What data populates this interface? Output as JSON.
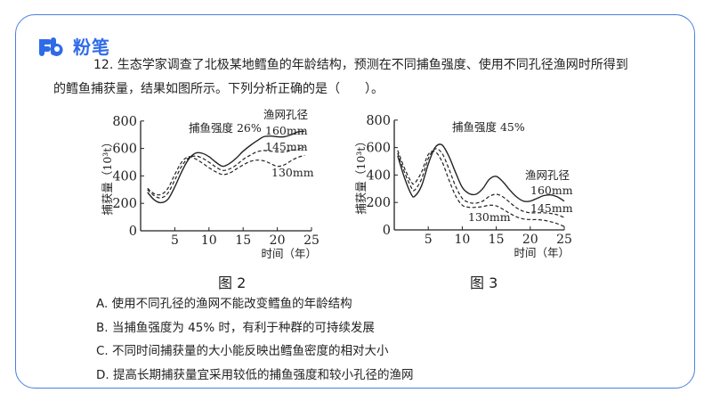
{
  "brand": {
    "name": "粉笔",
    "color": "#2f6be8"
  },
  "frame": {
    "border_color": "#4a7fe0"
  },
  "question": {
    "line1": "12. 生态学家调查了北极某地鳕鱼的年龄结构，预测在不同捕鱼强度、使用不同孔径渔网时所得到",
    "line2": "的鳕鱼捕获量，结果如图所示。下列分析正确的是（　　）。"
  },
  "figures": [
    {
      "caption": "图 2"
    },
    {
      "caption": "图 3"
    }
  ],
  "options": [
    {
      "label": "A. 使用不同孔径的渔网不能改变鳕鱼的年龄结构"
    },
    {
      "label": "B. 当捕鱼强度为 45% 时，有利于种群的可持续发展"
    },
    {
      "label": "C. 不同时间捕获量的大小能反映出鳕鱼密度的相对大小"
    },
    {
      "label": "D. 提高长期捕获量宜采用较低的捕鱼强度和较小孔径的渔网"
    }
  ],
  "chart_data": [
    {
      "type": "line",
      "title": "图 2",
      "annotation": "捕鱼强度 26%",
      "legend_title": "渔网孔径",
      "xlabel": "时间（年）",
      "ylabel": "捕获量（10³t）",
      "xticks": [
        5,
        10,
        15,
        20,
        25
      ],
      "yticks": [
        0,
        200,
        400,
        600,
        800
      ],
      "xlim": [
        0,
        25
      ],
      "ylim": [
        0,
        800
      ],
      "grid": false,
      "x": [
        1,
        2,
        3,
        4,
        5,
        6,
        7,
        8,
        9,
        10,
        11,
        12,
        13,
        14,
        15,
        16,
        17,
        18,
        19,
        20,
        21,
        22,
        23,
        24
      ],
      "series": [
        {
          "name": "160mm",
          "style": "solid",
          "values": [
            280,
            225,
            205,
            230,
            320,
            430,
            520,
            565,
            565,
            540,
            500,
            470,
            490,
            530,
            580,
            620,
            655,
            685,
            690,
            685,
            685,
            700,
            720,
            725
          ]
        },
        {
          "name": "145mm",
          "style": "dashed",
          "values": [
            300,
            255,
            240,
            275,
            370,
            470,
            530,
            545,
            530,
            500,
            465,
            440,
            450,
            480,
            520,
            550,
            575,
            585,
            580,
            575,
            575,
            585,
            595,
            610
          ]
        },
        {
          "name": "130mm",
          "style": "dashed",
          "values": [
            310,
            270,
            265,
            310,
            410,
            500,
            540,
            525,
            495,
            460,
            430,
            410,
            420,
            450,
            480,
            505,
            515,
            510,
            490,
            470,
            480,
            510,
            535,
            550
          ]
        }
      ]
    },
    {
      "type": "line",
      "title": "图 3",
      "annotation": "捕鱼强度 45%",
      "legend_title": "渔网孔径",
      "xlabel": "时间（年）",
      "ylabel": "捕获量（10³t）",
      "xticks": [
        5,
        10,
        15,
        20,
        25
      ],
      "yticks": [
        0,
        200,
        400,
        600,
        800
      ],
      "xlim": [
        0,
        25
      ],
      "ylim": [
        0,
        800
      ],
      "grid": false,
      "x": [
        0.5,
        1.5,
        2.5,
        3,
        4,
        5,
        6,
        7,
        8,
        9,
        10,
        11,
        12,
        13,
        14,
        15,
        16,
        17,
        18,
        19,
        20,
        21,
        22,
        23,
        24,
        25
      ],
      "series": [
        {
          "name": "160mm",
          "style": "solid",
          "values": [
            540,
            380,
            260,
            245,
            320,
            480,
            600,
            620,
            540,
            420,
            310,
            265,
            260,
            300,
            370,
            390,
            350,
            290,
            240,
            210,
            210,
            230,
            250,
            255,
            240,
            210
          ]
        },
        {
          "name": "145mm",
          "style": "dashed",
          "values": [
            560,
            420,
            310,
            290,
            370,
            520,
            590,
            560,
            450,
            320,
            230,
            200,
            195,
            210,
            245,
            260,
            240,
            200,
            160,
            135,
            125,
            125,
            125,
            120,
            110,
            90
          ]
        },
        {
          "name": "130mm",
          "style": "dashed",
          "values": [
            580,
            450,
            350,
            340,
            420,
            550,
            570,
            500,
            370,
            250,
            180,
            165,
            165,
            170,
            180,
            175,
            150,
            120,
            95,
            80,
            75,
            75,
            70,
            60,
            45,
            25
          ]
        }
      ],
      "series_labels_positions": "160mm/145mm at right, 130mm below curves mid-right"
    }
  ]
}
